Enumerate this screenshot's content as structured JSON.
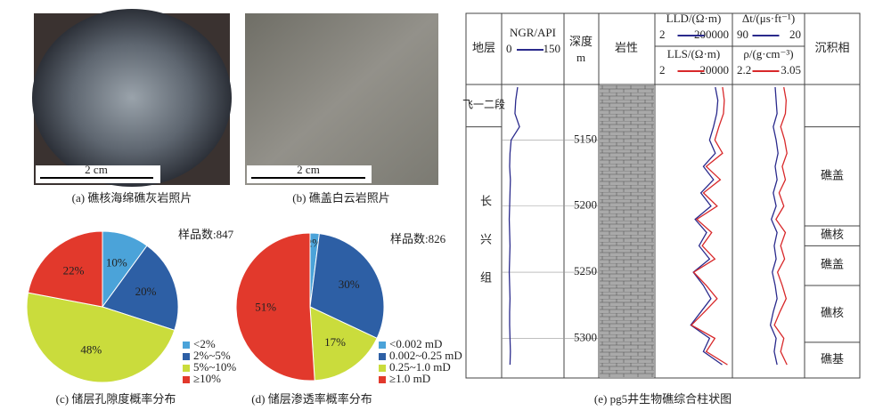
{
  "photos": [
    {
      "caption": "(a) 礁核海绵礁灰岩照片",
      "scale": "2 cm"
    },
    {
      "caption": "(b) 礁盖白云岩照片",
      "scale": "2 cm"
    }
  ],
  "chart_data": [
    {
      "type": "pie",
      "title": "(c) 储层孔隙度概率分布",
      "annotation": "样品数:847",
      "categories": [
        "<2%",
        "2%~5%",
        "5%~10%",
        "≥10%"
      ],
      "values": [
        10,
        20,
        48,
        22
      ],
      "value_labels": [
        "10%",
        "20%",
        "48%",
        "22%"
      ],
      "colors": [
        "#4ba3d9",
        "#2d5fa5",
        "#cadc3c",
        "#e2392c"
      ],
      "legend": "bottom-right"
    },
    {
      "type": "pie",
      "title": "(d) 储层渗透率概率分布",
      "annotation": "样品数:826",
      "categories": [
        "<0.002 mD",
        "0.002~0.25 mD",
        "0.25~1.0 mD",
        "≥1.0 mD"
      ],
      "values": [
        2,
        30,
        17,
        51
      ],
      "value_labels": [
        "2%",
        "30%",
        "17%",
        "51%"
      ],
      "colors": [
        "#4ba3d9",
        "#2d5fa5",
        "#cadc3c",
        "#e2392c"
      ],
      "legend": "bottom-right"
    },
    {
      "type": "well_log",
      "title": "(e) pg5井生物礁综合柱状图",
      "columns": {
        "strata": "地层",
        "depth": "深度",
        "depth_unit": "m",
        "lithology": "岩性",
        "facies": "沉积相"
      },
      "ylim": [
        5108,
        5330
      ],
      "yticks": [
        5150,
        5200,
        5250,
        5300
      ],
      "depth": [
        5110,
        5120,
        5130,
        5140,
        5150,
        5160,
        5170,
        5180,
        5190,
        5200,
        5210,
        5220,
        5230,
        5240,
        5250,
        5260,
        5270,
        5280,
        5290,
        5300,
        5310,
        5320
      ],
      "series": [
        {
          "name": "NGR/API",
          "color": "#2a2a8c",
          "xlim": [
            0,
            150
          ],
          "values": [
            35,
            30,
            28,
            40,
            18,
            15,
            14,
            16,
            15,
            14,
            13,
            14,
            15,
            14,
            13,
            14,
            15,
            14,
            14,
            15,
            16,
            15
          ]
        },
        {
          "name": "LLD/(Ω·m)",
          "color": "#2a2a8c",
          "xlim": [
            2,
            200000
          ],
          "log": true,
          "values": [
            20000,
            30000,
            25000,
            15000,
            8000,
            20000,
            3000,
            15000,
            2000,
            10000,
            800,
            5000,
            1500,
            8000,
            600,
            3000,
            10000,
            2000,
            400,
            8000,
            3000,
            60000
          ]
        },
        {
          "name": "LLS/(Ω·m)",
          "color": "#d8282a",
          "xlim": [
            2,
            20000
          ],
          "log": true,
          "values": [
            8000,
            10000,
            9000,
            5000,
            3000,
            8000,
            1000,
            6000,
            700,
            4000,
            300,
            2000,
            600,
            3000,
            200,
            1000,
            4000,
            800,
            150,
            3000,
            1000,
            15000
          ]
        },
        {
          "name": "Δt/(μs·ft⁻¹)",
          "color": "#2a2a8c",
          "xlim": [
            90,
            20
          ],
          "values": [
            48,
            47,
            46,
            50,
            47,
            45,
            48,
            46,
            50,
            47,
            52,
            46,
            49,
            47,
            51,
            48,
            46,
            50,
            53,
            47,
            49,
            46
          ]
        },
        {
          "name": "ρ/(g·cm⁻³)",
          "color": "#d8282a",
          "xlim": [
            2.2,
            3.05
          ],
          "values": [
            2.82,
            2.85,
            2.84,
            2.78,
            2.83,
            2.86,
            2.8,
            2.84,
            2.76,
            2.82,
            2.72,
            2.84,
            2.78,
            2.83,
            2.74,
            2.8,
            2.85,
            2.77,
            2.7,
            2.82,
            2.78,
            2.86
          ]
        }
      ],
      "strata": [
        {
          "name": "飞一二段",
          "top": 5108,
          "bottom": 5140
        },
        {
          "name": "长兴组",
          "top": 5140,
          "bottom": 5330
        }
      ],
      "facies": [
        {
          "name": "礁盖",
          "top": 5140,
          "bottom": 5215
        },
        {
          "name": "礁核",
          "top": 5215,
          "bottom": 5230
        },
        {
          "name": "礁盖",
          "top": 5230,
          "bottom": 5260
        },
        {
          "name": "礁核",
          "top": 5260,
          "bottom": 5303
        },
        {
          "name": "礁基",
          "top": 5303,
          "bottom": 5330
        }
      ]
    }
  ]
}
